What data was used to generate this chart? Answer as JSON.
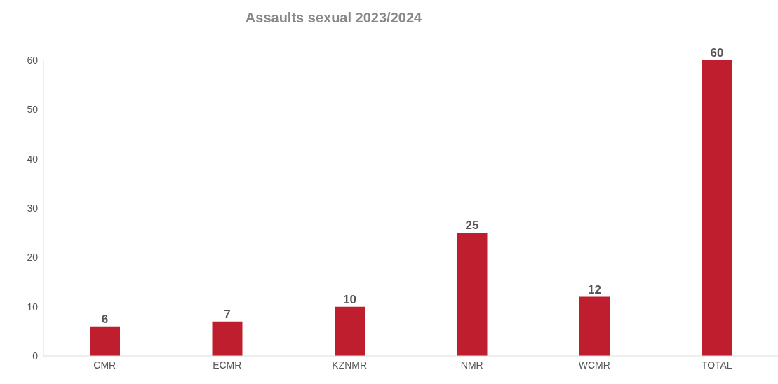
{
  "chart_data": {
    "type": "bar",
    "title": "Assaults sexual 2023/2024",
    "categories": [
      "CMR",
      "ECMR",
      "KZNMR",
      "NMR",
      "WCMR",
      "TOTAL"
    ],
    "values": [
      6,
      7,
      10,
      25,
      12,
      60
    ],
    "color": "#be1e2d",
    "ylim": [
      0,
      60
    ],
    "yticks": [
      0,
      10,
      20,
      30,
      40,
      50,
      60
    ],
    "grid": false,
    "data_labels": true
  }
}
